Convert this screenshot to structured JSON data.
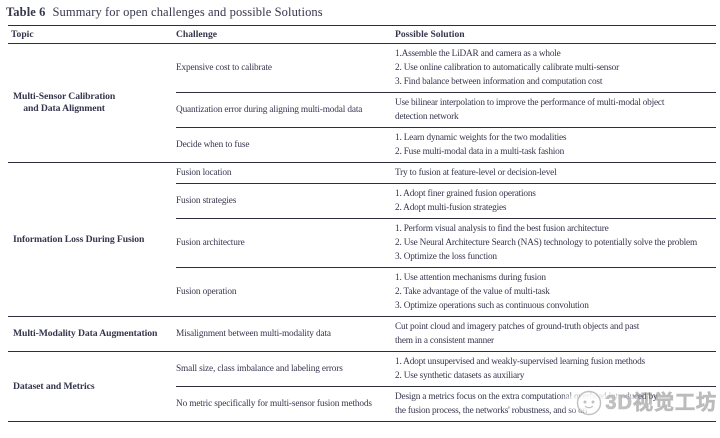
{
  "title": {
    "label": "Table 6",
    "caption": "Summary for open challenges and possible Solutions"
  },
  "table": {
    "headers": {
      "topic": "Topic",
      "challenge": "Challenge",
      "solution": "Possible Solution"
    },
    "sections": [
      {
        "topic": "Multi-Sensor Calibration\nand Data Alignment",
        "rows": [
          {
            "challenge": "Expensive cost to calibrate",
            "solutions": [
              "1.Assemble the LiDAR and camera as a whole",
              "2. Use online calibration to automatically calibrate multi-sensor",
              "3. Find balance between information and computation cost"
            ]
          },
          {
            "challenge": "Quantization error during aligning multi-modal data",
            "solutions": [
              "Use bilinear interpolation to improve the performance of multi-modal object",
              "detection network"
            ]
          },
          {
            "challenge": "Decide when to fuse",
            "solutions": [
              "1. Learn dynamic weights for the two modalities",
              "2. Fuse multi-modal data in a multi-task fashion"
            ]
          }
        ]
      },
      {
        "topic": "Information Loss During Fusion",
        "rows": [
          {
            "challenge": "Fusion location",
            "solutions": [
              "Try to fusion at feature-level or decision-level"
            ]
          },
          {
            "challenge": "Fusion strategies",
            "solutions": [
              "1. Adopt finer grained fusion operations",
              "2. Adopt multi-fusion strategies"
            ]
          },
          {
            "challenge": "Fusion architecture",
            "solutions": [
              "1. Perform visual analysis to find the best fusion architecture",
              "2. Use Neural Architecture Search (NAS) technology to potentially solve the problem",
              "3. Optimize the loss function"
            ]
          },
          {
            "challenge": "Fusion operation",
            "solutions": [
              "1. Use attention mechanisms during fusion",
              "2. Take advantage of the value of multi-task",
              "3. Optimize operations such as continuous convolution"
            ]
          }
        ]
      },
      {
        "topic": "Multi-Modality Data Augmentation",
        "rows": [
          {
            "challenge": "Misalignment between multi-modality data",
            "solutions": [
              "Cut point cloud and imagery patches of ground-truth objects and past",
              "them in a consistent manner"
            ]
          }
        ]
      },
      {
        "topic": "Dataset and Metrics",
        "rows": [
          {
            "challenge": "Small size, class imbalance and labeling errors",
            "solutions": [
              "1. Adopt unsupervised and weakly-supervised learning fusion methods",
              "2. Use synthetic datasets as auxiliary"
            ]
          },
          {
            "challenge": "No metric specifically for multi-sensor fusion methods",
            "solutions": [
              "Design a metrics focus on the extra computational overhead introduced by",
              "the fusion process, the networks' robustness, and so on"
            ]
          }
        ]
      }
    ]
  },
  "watermark": {
    "text": "3D视觉工坊",
    "icon": "face-logo"
  },
  "colors": {
    "text": "#36364e",
    "rule": "#2e2e40",
    "watermark": "#8f8f8f"
  }
}
